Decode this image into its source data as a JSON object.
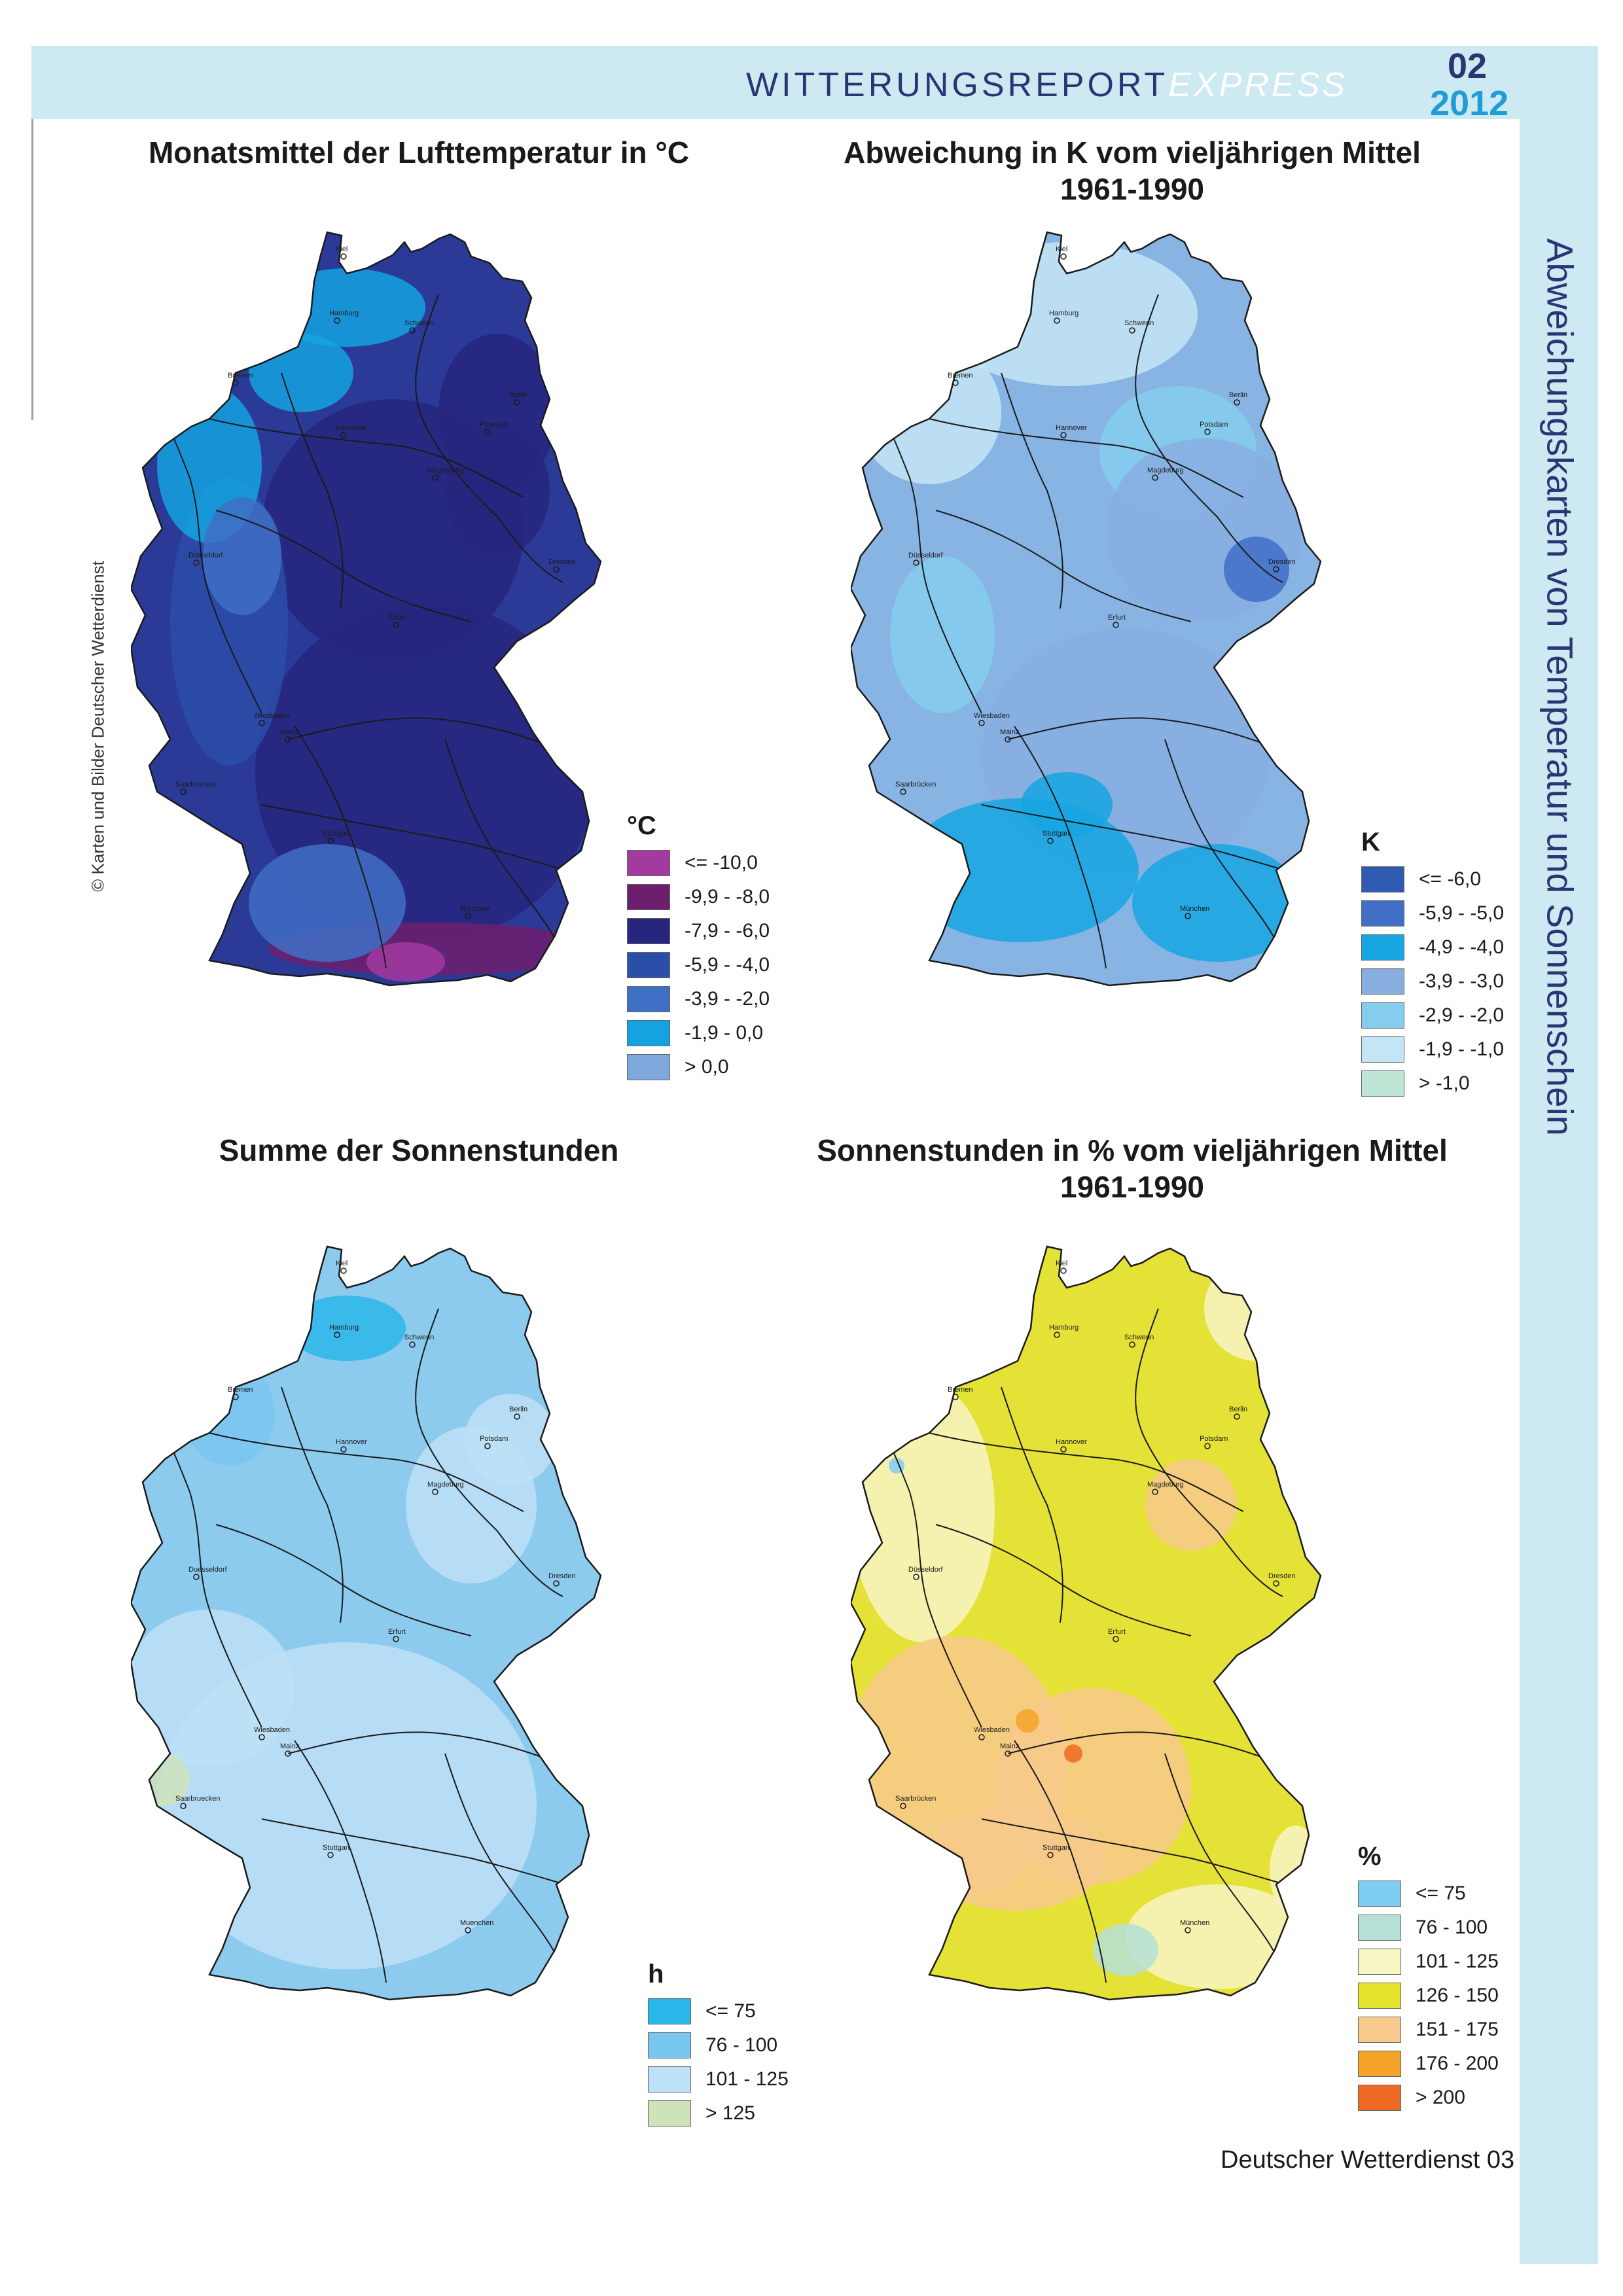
{
  "header": {
    "title": "WITTERUNGSREPORT",
    "title_suffix": "EXPRESS",
    "issue": "02",
    "year": "2012"
  },
  "side_title": "Abweichungskarten von Temperatur und Sonnenschein",
  "credit": "© Karten und Bilder Deutscher Wetterdienst",
  "footer": "Deutscher Wetterdienst  03",
  "maps": [
    {
      "title": "Monatsmittel der Lufttemperatur in °C",
      "base_color": "#2b3a96",
      "legend": {
        "unit": "°C",
        "entries": [
          {
            "label": "<= -10,0",
            "color": "#a23aa0"
          },
          {
            "label": "-9,9 - -8,0",
            "color": "#6e1e6e"
          },
          {
            "label": "-7,9 - -6,0",
            "color": "#27267e"
          },
          {
            "label": "-5,9 - -4,0",
            "color": "#2b4ea8"
          },
          {
            "label": "-3,9 - -2,0",
            "color": "#3f6fc4"
          },
          {
            "label": "-1,9 - 0,0",
            "color": "#14a3e0"
          },
          {
            "label": "> 0,0",
            "color": "#7ea7dc"
          }
        ]
      },
      "cities": [
        "Kiel",
        "Hamburg",
        "Schwerin",
        "Bremen",
        "Berlin",
        "Hannover",
        "Potsdam",
        "Magdeburg",
        "Düsseldorf",
        "Dresden",
        "Erfurt",
        "Wiesbaden",
        "Mainz",
        "Saarbrücken",
        "Stuttgart",
        "München"
      ]
    },
    {
      "title": "Abweichung in K vom vieljährigen Mittel",
      "subtitle": "1961-1990",
      "base_color": "#88b4e4",
      "legend": {
        "unit": "K",
        "entries": [
          {
            "label": "<= -6,0",
            "color": "#2f5bb0"
          },
          {
            "label": "-5,9 - -5,0",
            "color": "#416fc6"
          },
          {
            "label": "-4,9 - -4,0",
            "color": "#16a6e2"
          },
          {
            "label": "-3,9 - -3,0",
            "color": "#88aee0"
          },
          {
            "label": "-2,9 - -2,0",
            "color": "#85cdee"
          },
          {
            "label": "-1,9 - -1,0",
            "color": "#c4e5f6"
          },
          {
            "label": "> -1,0",
            "color": "#bde6d4"
          }
        ]
      },
      "cities": [
        "Kiel",
        "Hamburg",
        "Schwerin",
        "Bremen",
        "Berlin",
        "Hannover",
        "Potsdam",
        "Magdeburg",
        "Düsseldorf",
        "Dresden",
        "Erfurt",
        "Wiesbaden",
        "Mainz",
        "Saarbrücken",
        "Stuttgart",
        "München"
      ]
    },
    {
      "title": "Summe der Sonnenstunden",
      "base_color": "#8ccbee",
      "legend": {
        "unit": "h",
        "entries": [
          {
            "label": "<= 75",
            "color": "#2ab7ea"
          },
          {
            "label": "76 - 100",
            "color": "#79c6ee"
          },
          {
            "label": "101 - 125",
            "color": "#bde1f6"
          },
          {
            "label": "> 125",
            "color": "#cfe3bb"
          }
        ]
      },
      "cities": [
        "Kiel",
        "Hamburg",
        "Schwerin",
        "Bremen",
        "Berlin",
        "Hannover",
        "Potsdam",
        "Magdeburg",
        "Duesseldorf",
        "Dresden",
        "Erfurt",
        "Wiesbaden",
        "Mainz",
        "Saarbruecken",
        "Stuttgart",
        "Muenchen"
      ]
    },
    {
      "title": "Sonnenstunden in % vom vieljährigen Mittel",
      "subtitle": "1961-1990",
      "base_color": "#e4e236",
      "legend": {
        "unit": "%",
        "entries": [
          {
            "label": "<= 75",
            "color": "#7fcdf0"
          },
          {
            "label": "76 - 100",
            "color": "#b4e0d6"
          },
          {
            "label": "101 - 125",
            "color": "#f8f5c4"
          },
          {
            "label": "126 - 150",
            "color": "#e5e42c"
          },
          {
            "label": "151 - 175",
            "color": "#f8c98c"
          },
          {
            "label": "176 - 200",
            "color": "#f3a428"
          },
          {
            "label": "> 200",
            "color": "#ee6a22"
          }
        ]
      },
      "cities": [
        "Kiel",
        "Hamburg",
        "Schwerin",
        "Bremen",
        "Berlin",
        "Hannover",
        "Potsdam",
        "Magdeburg",
        "Düsseldorf",
        "Dresden",
        "Erfurt",
        "Wiesbaden",
        "Mainz",
        "Saarbrücken",
        "Stuttgart",
        "München"
      ]
    }
  ]
}
